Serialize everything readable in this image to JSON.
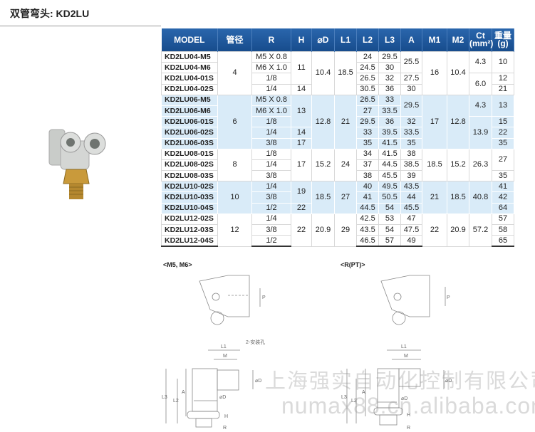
{
  "title": "双管弯头: KD2LU",
  "table": {
    "headers": [
      "MODEL",
      "管径",
      "R",
      "H",
      "⌀D",
      "L1",
      "L2",
      "L3",
      "A",
      "M1",
      "M2",
      "Ct\n(mm²)",
      "重量\n(g)"
    ],
    "rows": [
      {
        "bg": "white",
        "cells": [
          [
            "KD2LU04-M5",
            1
          ],
          [
            "4",
            4
          ],
          [
            "M5 X 0.8",
            1
          ],
          [
            "11",
            3
          ],
          [
            "10.4",
            4
          ],
          [
            "18.5",
            4
          ],
          [
            "24",
            1
          ],
          [
            "29.5",
            1
          ],
          [
            "25.5",
            2
          ],
          [
            "16",
            4
          ],
          [
            "10.4",
            4
          ],
          [
            "4.3",
            2
          ],
          [
            "10",
            2
          ]
        ]
      },
      {
        "bg": "white",
        "cells": [
          [
            "KD2LU04-M6",
            1
          ],
          [
            "M6 X 1.0",
            1
          ],
          [
            "24.5",
            1
          ],
          [
            "30",
            1
          ]
        ]
      },
      {
        "bg": "white",
        "cells": [
          [
            "KD2LU04-01S",
            1
          ],
          [
            "1/8",
            1
          ],
          [
            "26.5",
            1
          ],
          [
            "32",
            1
          ],
          [
            "27.5",
            1
          ],
          [
            "6.0",
            2
          ],
          [
            "12",
            1
          ]
        ]
      },
      {
        "bg": "white",
        "cells": [
          [
            "KD2LU04-02S",
            1
          ],
          [
            "1/4",
            1
          ],
          [
            "14",
            1
          ],
          [
            "30.5",
            1
          ],
          [
            "36",
            1
          ],
          [
            "30",
            1
          ],
          [
            "21",
            1
          ]
        ]
      },
      {
        "bg": "blue",
        "cells": [
          [
            "KD2LU06-M5",
            1
          ],
          [
            "6",
            5
          ],
          [
            "M5 X 0.8",
            1
          ],
          [
            "13",
            3
          ],
          [
            "12.8",
            5
          ],
          [
            "21",
            5
          ],
          [
            "26.5",
            1
          ],
          [
            "33",
            1
          ],
          [
            "29.5",
            2
          ],
          [
            "17",
            5
          ],
          [
            "12.8",
            5
          ],
          [
            "4.3",
            2
          ],
          [
            "13",
            2
          ]
        ]
      },
      {
        "bg": "blue",
        "cells": [
          [
            "KD2LU06-M6",
            1
          ],
          [
            "M6 X 1.0",
            1
          ],
          [
            "27",
            1
          ],
          [
            "33.5",
            1
          ]
        ]
      },
      {
        "bg": "blue",
        "cells": [
          [
            "KD2LU06-01S",
            1
          ],
          [
            "1/8",
            1
          ],
          [
            "29.5",
            1
          ],
          [
            "36",
            1
          ],
          [
            "32",
            1
          ],
          [
            "13.9",
            3
          ],
          [
            "15",
            1
          ]
        ]
      },
      {
        "bg": "blue",
        "cells": [
          [
            "KD2LU06-02S",
            1
          ],
          [
            "1/4",
            1
          ],
          [
            "14",
            1
          ],
          [
            "33",
            1
          ],
          [
            "39.5",
            1
          ],
          [
            "33.5",
            1
          ],
          [
            "22",
            1
          ]
        ]
      },
      {
        "bg": "blue",
        "cells": [
          [
            "KD2LU06-03S",
            1
          ],
          [
            "3/8",
            1
          ],
          [
            "17",
            1
          ],
          [
            "35",
            1
          ],
          [
            "41.5",
            1
          ],
          [
            "35",
            1
          ],
          [
            "35",
            1
          ]
        ]
      },
      {
        "bg": "white",
        "cells": [
          [
            "KD2LU08-01S",
            1
          ],
          [
            "8",
            3
          ],
          [
            "1/8",
            1
          ],
          [
            "17",
            3
          ],
          [
            "15.2",
            3
          ],
          [
            "24",
            3
          ],
          [
            "34",
            1
          ],
          [
            "41.5",
            1
          ],
          [
            "38",
            1
          ],
          [
            "18.5",
            3
          ],
          [
            "15.2",
            3
          ],
          [
            "26.3",
            3
          ],
          [
            "27",
            2
          ]
        ]
      },
      {
        "bg": "white",
        "cells": [
          [
            "KD2LU08-02S",
            1
          ],
          [
            "1/4",
            1
          ],
          [
            "37",
            1
          ],
          [
            "44.5",
            1
          ],
          [
            "38.5",
            1
          ]
        ]
      },
      {
        "bg": "white",
        "cells": [
          [
            "KD2LU08-03S",
            1
          ],
          [
            "3/8",
            1
          ],
          [
            "38",
            1
          ],
          [
            "45.5",
            1
          ],
          [
            "39",
            1
          ],
          [
            "35",
            1
          ]
        ]
      },
      {
        "bg": "blue",
        "cells": [
          [
            "KD2LU10-02S",
            1
          ],
          [
            "10",
            3
          ],
          [
            "1/4",
            1
          ],
          [
            "19",
            2
          ],
          [
            "18.5",
            3
          ],
          [
            "27",
            3
          ],
          [
            "40",
            1
          ],
          [
            "49.5",
            1
          ],
          [
            "43.5",
            1
          ],
          [
            "21",
            3
          ],
          [
            "18.5",
            3
          ],
          [
            "40.8",
            3
          ],
          [
            "41",
            1
          ]
        ]
      },
      {
        "bg": "blue",
        "cells": [
          [
            "KD2LU10-03S",
            1
          ],
          [
            "3/8",
            1
          ],
          [
            "41",
            1
          ],
          [
            "50.5",
            1
          ],
          [
            "44",
            1
          ],
          [
            "42",
            1
          ]
        ]
      },
      {
        "bg": "blue",
        "cells": [
          [
            "KD2LU10-04S",
            1
          ],
          [
            "1/2",
            1
          ],
          [
            "22",
            1
          ],
          [
            "44.5",
            1
          ],
          [
            "54",
            1
          ],
          [
            "45.5",
            1
          ],
          [
            "64",
            1
          ]
        ]
      },
      {
        "bg": "white",
        "cells": [
          [
            "KD2LU12-02S",
            1
          ],
          [
            "12",
            3
          ],
          [
            "1/4",
            1
          ],
          [
            "22",
            3
          ],
          [
            "20.9",
            3
          ],
          [
            "29",
            3
          ],
          [
            "42.5",
            1
          ],
          [
            "53",
            1
          ],
          [
            "47",
            1
          ],
          [
            "22",
            3
          ],
          [
            "20.9",
            3
          ],
          [
            "57.2",
            3
          ],
          [
            "57",
            1
          ]
        ]
      },
      {
        "bg": "white",
        "cells": [
          [
            "KD2LU12-03S",
            1
          ],
          [
            "3/8",
            1
          ],
          [
            "43.5",
            1
          ],
          [
            "54",
            1
          ],
          [
            "47.5",
            1
          ],
          [
            "58",
            1
          ]
        ]
      },
      {
        "bg": "white",
        "cells": [
          [
            "KD2LU12-04S",
            1
          ],
          [
            "1/2",
            1
          ],
          [
            "46.5",
            1
          ],
          [
            "57",
            1
          ],
          [
            "49",
            1
          ],
          [
            "65",
            1
          ]
        ]
      }
    ]
  },
  "drawings": {
    "m_label": "<M5, M6>",
    "r_label": "<R(PT)>",
    "dims": {
      "L1": "L1",
      "M": "M",
      "L2": "L2",
      "L3": "L3",
      "A": "A",
      "D": "⌀D",
      "H": "H",
      "R": "R",
      "P": "P",
      "hole": "2-安装孔"
    }
  },
  "watermark": {
    "company": "上海强实自动化控制有限公司",
    "site": "numax88.cn.alibaba.com"
  },
  "colors": {
    "header": "#1f5aa0",
    "band": "#d9ebf8"
  }
}
